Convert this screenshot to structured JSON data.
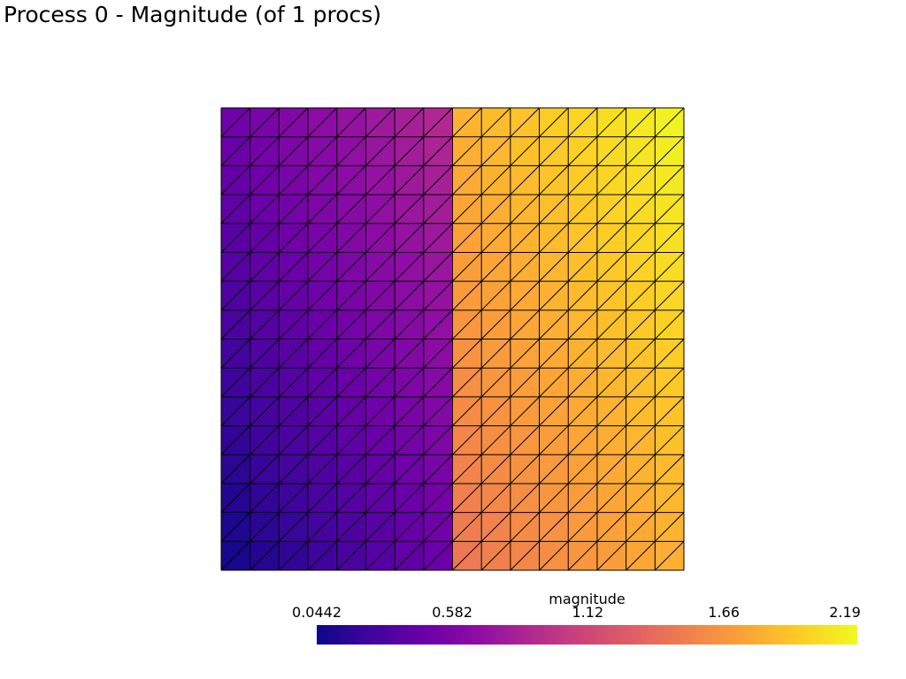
{
  "title": "Process 0 - Magnitude (of 1 procs)",
  "chart_data": {
    "type": "heatmap",
    "colormap": "plasma",
    "mesh": {
      "cells_x": 16,
      "cells_y": 16,
      "element": "triangle",
      "diagonal": "bottom-left to top-right"
    },
    "field": "magnitude",
    "x_range": [
      0,
      1
    ],
    "y_range": [
      0,
      1
    ],
    "discontinuity_x": 0.5,
    "regions": [
      {
        "x_range": [
          0,
          0.5
        ],
        "value_at_bottom_left": 0.0442,
        "value_at_top_right": 0.93
      },
      {
        "x_range": [
          0.5,
          1
        ],
        "value_at_bottom_left": 1.44,
        "value_at_top_right": 2.19
      }
    ],
    "colorbar": {
      "title": "magnitude",
      "min": 0.0442,
      "max": 2.19,
      "ticks": [
        "0.0442",
        "0.582",
        "1.12",
        "1.66",
        "2.19"
      ]
    }
  },
  "colors": {
    "background": "#ffffff",
    "mesh_edge": "#000000"
  }
}
